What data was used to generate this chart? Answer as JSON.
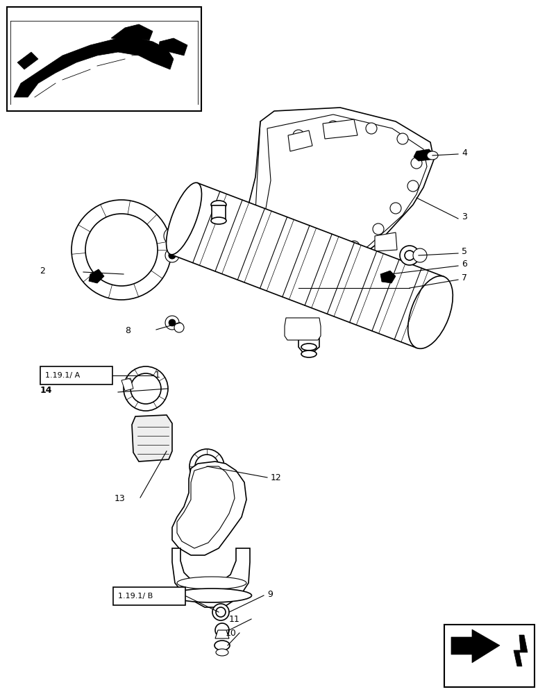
{
  "bg_color": "#ffffff",
  "line_color": "#000000",
  "fig_width": 7.88,
  "fig_height": 10.0,
  "dpi": 100
}
